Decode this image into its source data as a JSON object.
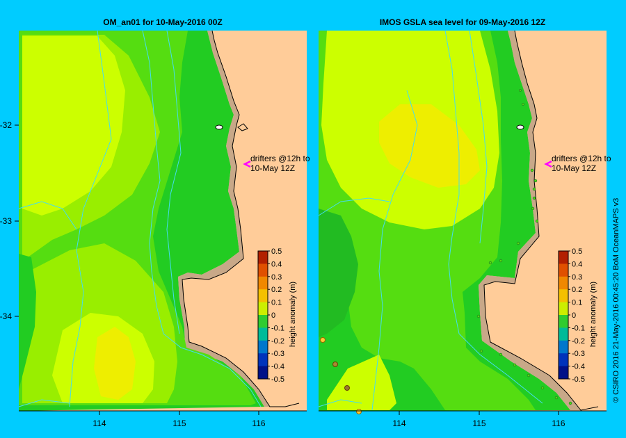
{
  "panels": [
    {
      "title": "OM_an01  for 10-May-2016 00Z",
      "annotation": [
        "drifters @12h to",
        "10-May 12Z"
      ]
    },
    {
      "title": "IMOS  GSLA sea level   for 09-May-2016 12Z",
      "annotation": [
        "drifters @12h to",
        "10-May 12Z"
      ]
    }
  ],
  "axes": {
    "x_ticks": [
      "114",
      "115",
      "116"
    ],
    "y_ticks": [
      "-32",
      "-33",
      "-34"
    ]
  },
  "colorbar": {
    "label": "height anomaly  (m)",
    "ticks": [
      "0.5",
      "0.4",
      "0.3",
      "0.2",
      "0.1",
      "0",
      "-0.1",
      "-0.2",
      "-0.3",
      "-0.4",
      "-0.5"
    ],
    "colors": [
      "#b22000",
      "#e05000",
      "#f08800",
      "#f4c000",
      "#ccee00",
      "#30cc30",
      "#00bb99",
      "#0077cc",
      "#0033bb",
      "#001188"
    ]
  },
  "credit": "© CSIRO 2016   21-May-2016 00:45:20 BoM OceanMAPS v3",
  "colors": {
    "background": "#00ccff",
    "land": "#ffcc99",
    "coast": "#c8a888",
    "dark_green": "#22cc22",
    "green": "#55dd11",
    "lime": "#99ee00",
    "yellow_green": "#ccff00",
    "yellow": "#eeee00",
    "contour": "#44ddee"
  }
}
